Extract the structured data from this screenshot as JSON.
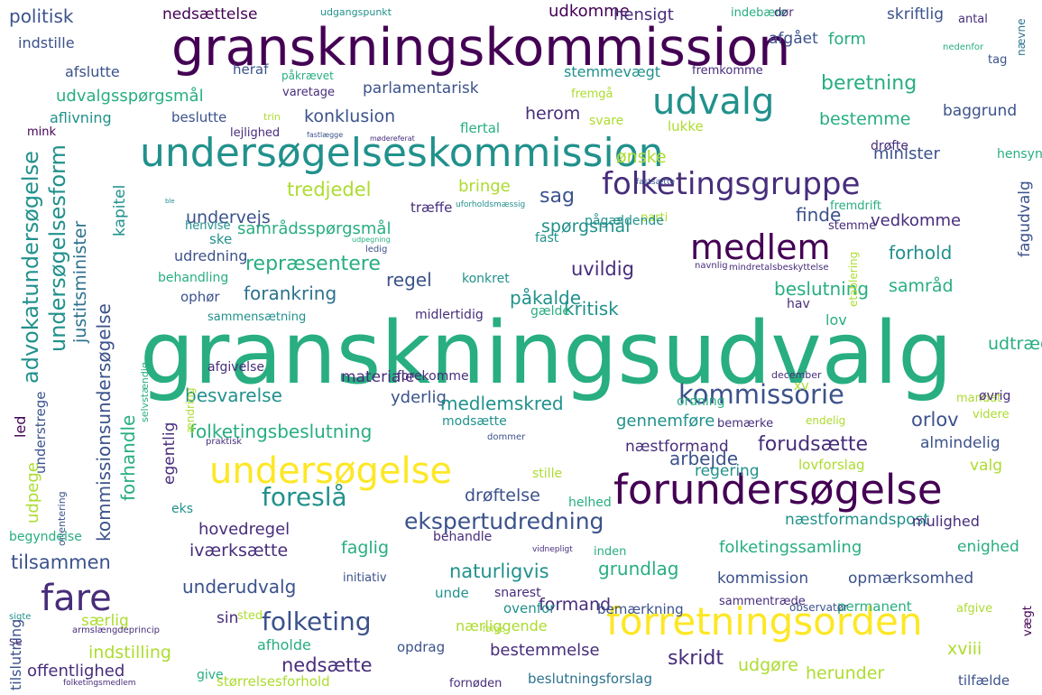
{
  "colors": {
    "dark_purple": "#440154",
    "purple": "#472d7b",
    "indigo": "#3b528b",
    "blue": "#2c728e",
    "teal": "#21918c",
    "sea_green": "#28ae80",
    "green": "#5ec962",
    "lime": "#addc30",
    "yellow": "#fde725"
  },
  "words": [
    "granskningsudvalg",
    "granskningskommission",
    "undersøgelseskommission",
    "forundersøgelse",
    "forretningsorden",
    "undersøgelse",
    "medlem",
    "udvalg",
    "fare",
    "folketingsgruppe",
    "kommissorie",
    "folketing",
    "foreslå",
    "ekspertudredning",
    "advokatundersøgelse",
    "undersøgelsesform",
    "kommissionsundersøgelse",
    "justitsminister",
    "kapitel",
    "politisk",
    "nedsættelse",
    "udkomme",
    "indstille",
    "afslutte",
    "udvalgsspørgsmål",
    "parlamentarisk",
    "beretning",
    "konklusion",
    "herom",
    "bestemme",
    "minister",
    "tredjedel",
    "bringe",
    "sag",
    "finde",
    "undervejs",
    "samrådsspørgsmål",
    "repræsentere",
    "spørgsmål",
    "forhold",
    "vedkomme",
    "uvildig",
    "regel",
    "ophør",
    "forankring",
    "påkalde",
    "kritisk",
    "beslutning",
    "samråd",
    "fagudvalg",
    "besvarelse",
    "yderlig",
    "materiale",
    "medlemskred",
    "folketingsbeslutning",
    "gennemføre",
    "orlov",
    "forudsætte",
    "arbejde",
    "almindelig",
    "næstformand",
    "regering",
    "valg",
    "egentlig",
    "forhandle",
    "udpege",
    "hovedregel",
    "drøftelse",
    "næstformandspost",
    "mulighed",
    "tilsammen",
    "iværksætte",
    "faglig",
    "naturligvis",
    "grundlag",
    "folketingssamling",
    "enighed",
    "underudvalg",
    "kommission",
    "opmærksomhed",
    "formand",
    "bemærkning",
    "særlig",
    "sin",
    "nærliggende",
    "indstilling",
    "bestemmelse",
    "skridt",
    "xviii",
    "udgøre",
    "herunder",
    "offentlighed",
    "nedsætte",
    "fornøden",
    "beslutningsforslag",
    "tilfælde",
    "skriftlig",
    "form",
    "afgået",
    "indebære",
    "antal",
    "dør",
    "nævne",
    "hensigt",
    "udgangspunkt",
    "stemmevægt",
    "fremkomme",
    "heraf",
    "påkrævet",
    "tag",
    "nedenfor",
    "varetage",
    "fremgå",
    "baggrund",
    "aflivning",
    "beslutte",
    "trin",
    "svare",
    "flertal",
    "lukke",
    "mink",
    "lejlighed",
    "fastlægge",
    "mødereferat",
    "drøfte",
    "hensyn",
    "ønske",
    "ske",
    "parti",
    "fastsætte",
    "træffe",
    "uforholdsmæssig",
    "fremdrift",
    "pågældende",
    "stemme",
    "henvise",
    "fast",
    "behandling",
    "konkret",
    "ledig",
    "udpegning",
    "navnlig",
    "etablering",
    "mindretalsbeskyttelse",
    "udredning",
    "midlertidig",
    "gælde",
    "hav",
    "lov",
    "udtræde",
    "sammensætning",
    "afgivelse",
    "forekomme",
    "december",
    "ordning",
    "xv",
    "mandat",
    "øvrig",
    "videre",
    "modsætte",
    "bemærke",
    "endelig",
    "ændring",
    "praktisk",
    "dommer",
    "understrege",
    "selvstændig",
    "stille",
    "lovforslag",
    "eks",
    "helhed",
    "behandle",
    "orientering",
    "vidnepligt",
    "inden",
    "begyndelse",
    "initiativ",
    "snarest",
    "unde",
    "ovenfor",
    "sammentræde",
    "permanent",
    "afgive",
    "observatør",
    "sted",
    "armslængdeprincip",
    "følge",
    "sigte",
    "afholde",
    "opdrag",
    "vægt",
    "se",
    "tilslutning",
    "give",
    "størrelsesforhold",
    "folketingsmedlem",
    "led",
    "ble"
  ]
}
